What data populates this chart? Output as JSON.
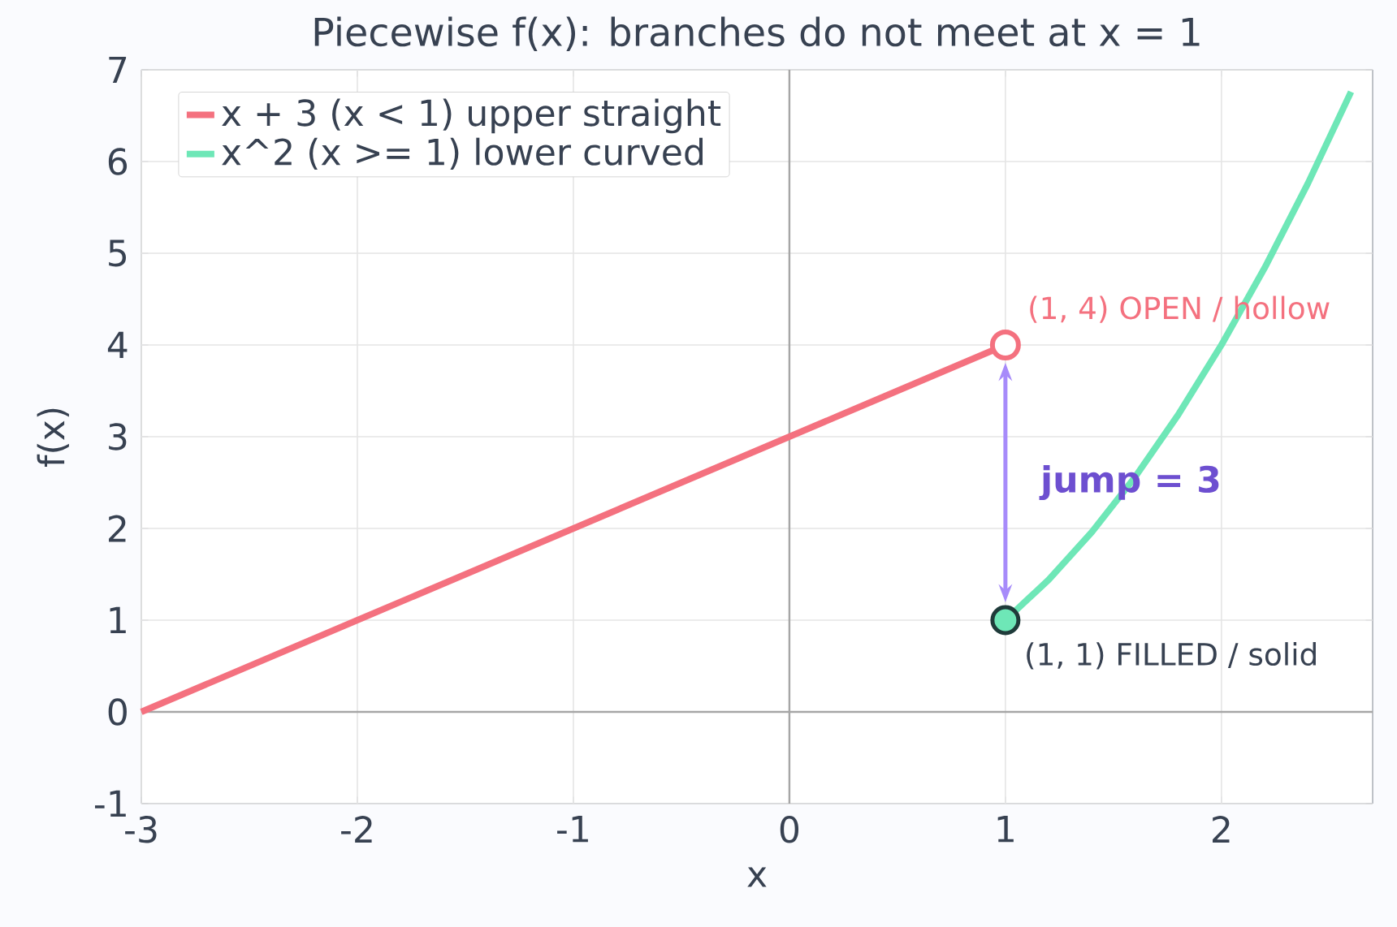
{
  "chart_data": {
    "type": "line",
    "title": "Piecewise f(x): branches do not meet at x = 1",
    "xlabel": "x",
    "ylabel": "f(x)",
    "xlim": [
      -3,
      2.7
    ],
    "ylim": [
      -1,
      7
    ],
    "xticks": [
      -3,
      -2,
      -1,
      0,
      1,
      2
    ],
    "yticks": [
      -1,
      0,
      1,
      2,
      3,
      4,
      5,
      6,
      7
    ],
    "grid": true,
    "legend": "top left",
    "series": [
      {
        "name": "x + 3  (x < 1)  upper straight",
        "color": "#f4717f",
        "x": [
          -3,
          1
        ],
        "values": [
          0,
          4
        ]
      },
      {
        "name": "x^2  (x >= 1)  lower curved",
        "color": "#6ee7b7",
        "x": [
          1,
          1.2,
          1.4,
          1.6,
          1.8,
          2,
          2.2,
          2.4,
          2.6
        ],
        "values": [
          1,
          1.44,
          1.96,
          2.56,
          3.24,
          4,
          4.84,
          5.76,
          6.76
        ]
      },
      {
        "type": "scatter",
        "marker": "circle",
        "color": "#f4717f",
        "x": [
          1
        ],
        "values": [
          4
        ]
      },
      {
        "type": "scatter",
        "marker": "circle",
        "color": "#6ee7b7",
        "x": [
          1
        ],
        "values": [
          1
        ]
      }
    ],
    "annotations": [
      {
        "text": "(1, 4) OPEN / hollow",
        "x": 1,
        "y": 4
      },
      {
        "text": "(1, 1) FILLED / solid",
        "x": 1,
        "y": 1
      },
      "jump = 3"
    ]
  }
}
